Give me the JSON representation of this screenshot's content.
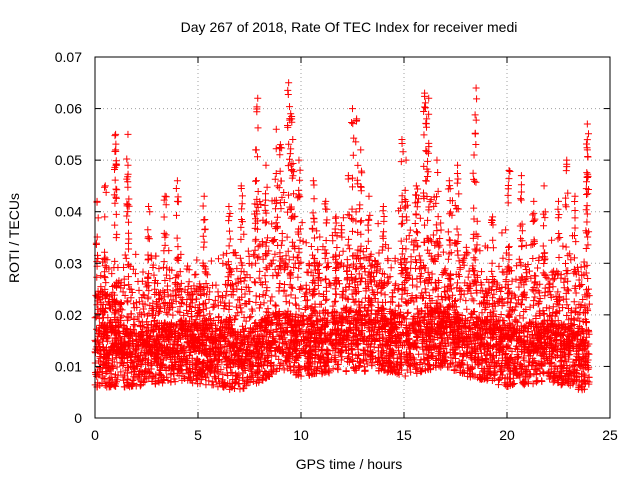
{
  "chart_data": {
    "type": "scatter",
    "title": "Day 267 of 2018, Rate Of TEC Index for receiver medi",
    "xlabel": "GPS time / hours",
    "ylabel": "ROTI / TECUs",
    "xlim": [
      0,
      25
    ],
    "ylim": [
      0,
      0.07
    ],
    "grid": true,
    "marker": "plus",
    "color": "#ff0000",
    "x_ticks": [
      "0",
      "5",
      "10",
      "15",
      "20",
      "25"
    ],
    "y_ticks": [
      "0",
      "0.01",
      "0.02",
      "0.03",
      "0.04",
      "0.05",
      "0.06",
      "0.07"
    ],
    "series": [
      {
        "name": "ROTI",
        "baseline": [
          [
            0,
            0.012
          ],
          [
            2,
            0.012
          ],
          [
            4,
            0.013
          ],
          [
            6,
            0.012
          ],
          [
            7,
            0.011
          ],
          [
            8,
            0.013
          ],
          [
            9,
            0.015
          ],
          [
            10,
            0.014
          ],
          [
            12,
            0.015
          ],
          [
            14,
            0.015
          ],
          [
            15,
            0.014
          ],
          [
            16,
            0.015
          ],
          [
            17,
            0.016
          ],
          [
            18,
            0.014
          ],
          [
            19,
            0.013
          ],
          [
            20,
            0.012
          ],
          [
            22,
            0.013
          ],
          [
            24,
            0.011
          ]
        ],
        "envelope": [
          [
            0,
            0.03
          ],
          [
            1,
            0.033
          ],
          [
            2,
            0.033
          ],
          [
            3,
            0.032
          ],
          [
            4,
            0.035
          ],
          [
            5,
            0.031
          ],
          [
            6,
            0.032
          ],
          [
            7,
            0.037
          ],
          [
            8,
            0.043
          ],
          [
            9,
            0.046
          ],
          [
            10,
            0.04
          ],
          [
            11,
            0.037
          ],
          [
            12,
            0.041
          ],
          [
            13,
            0.04
          ],
          [
            14,
            0.038
          ],
          [
            15,
            0.042
          ],
          [
            16,
            0.044
          ],
          [
            17,
            0.043
          ],
          [
            18,
            0.042
          ],
          [
            19,
            0.033
          ],
          [
            20,
            0.037
          ],
          [
            21,
            0.038
          ],
          [
            22,
            0.035
          ],
          [
            23,
            0.036
          ],
          [
            24,
            0.038
          ]
        ],
        "peaks": [
          [
            0.1,
            0.042
          ],
          [
            0.5,
            0.045
          ],
          [
            1.0,
            0.055
          ],
          [
            1.0,
            0.052
          ],
          [
            1.6,
            0.055
          ],
          [
            1.6,
            0.049
          ],
          [
            2.6,
            0.041
          ],
          [
            3.4,
            0.043
          ],
          [
            4.0,
            0.046
          ],
          [
            5.3,
            0.043
          ],
          [
            6.5,
            0.041
          ],
          [
            7.1,
            0.045
          ],
          [
            7.8,
            0.052
          ],
          [
            7.9,
            0.062
          ],
          [
            8.3,
            0.049
          ],
          [
            8.8,
            0.056
          ],
          [
            9.0,
            0.053
          ],
          [
            9.4,
            0.065
          ],
          [
            9.5,
            0.059
          ],
          [
            9.6,
            0.054
          ],
          [
            9.9,
            0.05
          ],
          [
            10.6,
            0.046
          ],
          [
            11.2,
            0.042
          ],
          [
            11.7,
            0.039
          ],
          [
            12.3,
            0.047
          ],
          [
            12.5,
            0.06
          ],
          [
            12.7,
            0.058
          ],
          [
            12.9,
            0.052
          ],
          [
            13.3,
            0.043
          ],
          [
            14.0,
            0.041
          ],
          [
            14.9,
            0.054
          ],
          [
            15.1,
            0.05
          ],
          [
            15.6,
            0.045
          ],
          [
            16.0,
            0.063
          ],
          [
            16.1,
            0.058
          ],
          [
            16.2,
            0.062
          ],
          [
            16.6,
            0.05
          ],
          [
            17.2,
            0.046
          ],
          [
            17.6,
            0.049
          ],
          [
            18.4,
            0.051
          ],
          [
            18.5,
            0.064
          ],
          [
            19.3,
            0.039
          ],
          [
            20.1,
            0.048
          ],
          [
            20.7,
            0.047
          ],
          [
            21.3,
            0.042
          ],
          [
            21.8,
            0.045
          ],
          [
            22.5,
            0.042
          ],
          [
            22.9,
            0.05
          ],
          [
            23.3,
            0.043
          ],
          [
            23.9,
            0.057
          ],
          [
            23.9,
            0.052
          ]
        ]
      }
    ]
  }
}
